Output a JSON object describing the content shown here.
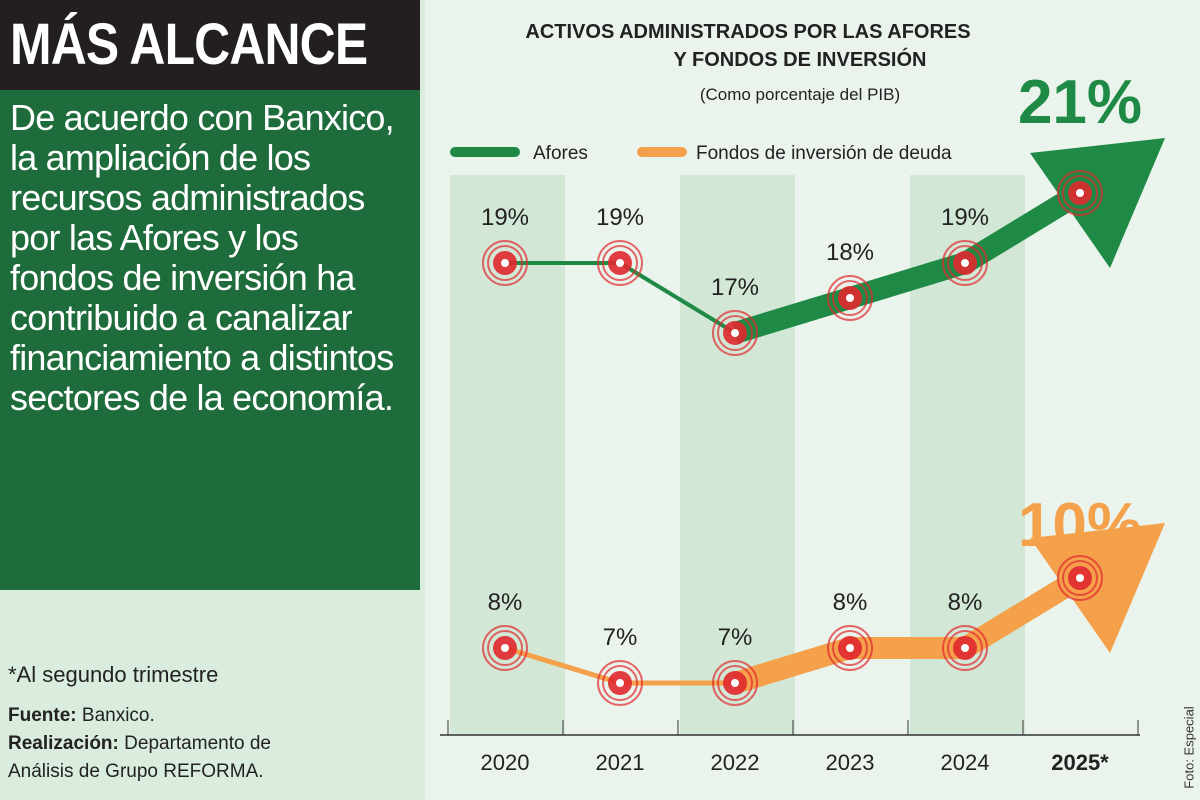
{
  "headline": "MÁS ALCANCE",
  "body": "De acuerdo con Banxico, la ampliación de los recursos administrados por las Afores y los fondos de inversión ha contribuido a canalizar financiamiento a distintos sectores de la economía.",
  "footnote": "*Al segundo trimestre",
  "source_label": "Fuente:",
  "source": "Banxico.",
  "credit_label": "Realización:",
  "credit": "Departamento de Análisis de Grupo REFORMA.",
  "photo_credit": "Foto: Especial",
  "colors": {
    "afores": "#1e8a45",
    "fondos": "#f5a04a",
    "marker": "#e0282e",
    "panel": "#1e6b3b"
  },
  "chart_data": {
    "type": "line",
    "title": "ACTIVOS ADMINISTRADOS POR LAS AFORES Y FONDOS DE INVERSIÓN",
    "subtitle": "(Como porcentaje del PIB)",
    "categories": [
      "2020",
      "2021",
      "2022",
      "2023",
      "2024",
      "2025*"
    ],
    "series": [
      {
        "name": "Afores",
        "values": [
          19,
          19,
          17,
          18,
          19,
          21
        ],
        "labels": [
          "19%",
          "19%",
          "17%",
          "18%",
          "19%",
          "21%"
        ]
      },
      {
        "name": "Fondos de inversión de deuda",
        "values": [
          8,
          7,
          7,
          8,
          8,
          10
        ],
        "labels": [
          "8%",
          "7%",
          "7%",
          "8%",
          "8%",
          "10%"
        ]
      }
    ],
    "legend": "top"
  }
}
